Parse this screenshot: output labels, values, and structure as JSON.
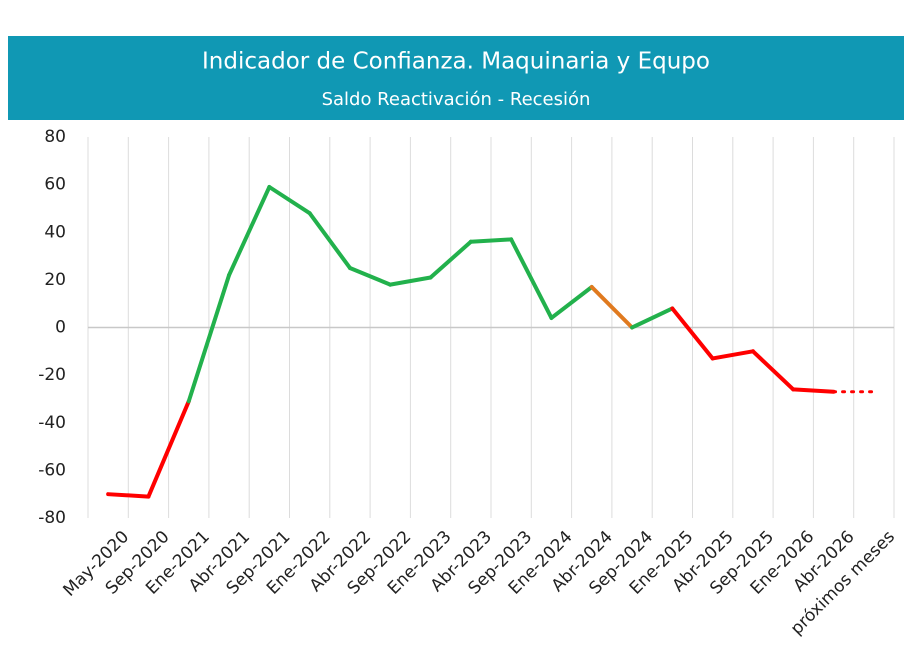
{
  "chart_data": {
    "type": "line",
    "title": "Indicador de Confianza. Maquinaria y Equpo",
    "subtitle": "Saldo Reactivación - Recesión",
    "categories": [
      "May-2020",
      "Sep-2020",
      "Ene-2021",
      "Abr-2021",
      "Sep-2021",
      "Ene-2022",
      "Abr-2022",
      "Sep-2022",
      "Ene-2023",
      "Abr-2023",
      "Sep-2023",
      "Ene-2024",
      "Abr-2024",
      "Sep-2024",
      "Ene-2025",
      "Abr-2025",
      "Sep-2025",
      "Ene-2026",
      "Abr-2026",
      "próximos meses"
    ],
    "values": [
      -70,
      -71,
      -31,
      22,
      59,
      48,
      25,
      18,
      21,
      36,
      37,
      4,
      17,
      0,
      8,
      -13,
      -10,
      -26,
      -27,
      -27
    ],
    "segment_colors": [
      "#ff0000",
      "#ff0000",
      "#22b14c",
      "#22b14c",
      "#22b14c",
      "#22b14c",
      "#22b14c",
      "#22b14c",
      "#22b14c",
      "#22b14c",
      "#22b14c",
      "#22b14c",
      "#e07a1f",
      "#22b14c",
      "#ff0000",
      "#ff0000",
      "#ff0000",
      "#ff0000",
      "#ff0000"
    ],
    "forecast_from": 18,
    "ylim": [
      -80,
      80
    ],
    "yticks": [
      -80,
      -60,
      -40,
      -20,
      0,
      20,
      40,
      60,
      80
    ],
    "grid": true
  }
}
